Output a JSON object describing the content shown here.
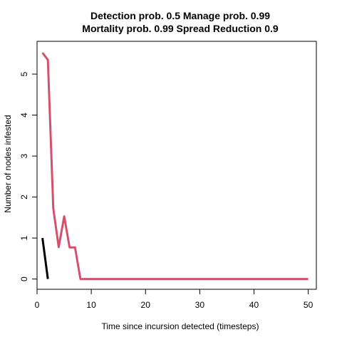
{
  "chart_data": {
    "type": "line",
    "title_line1": "Detection prob. 0.5 Manage prob. 0.99",
    "title_line2": "Mortality prob. 0.99 Spread Reduction 0.9",
    "xlabel": "Time since incursion detected (timesteps)",
    "ylabel": "Number of nodes infested",
    "xlim": [
      0,
      51.5
    ],
    "ylim": [
      -0.25,
      5.8
    ],
    "xticks": [
      0,
      10,
      20,
      30,
      40,
      50
    ],
    "yticks": [
      0,
      1,
      2,
      3,
      4,
      5
    ],
    "grid": false,
    "series": [
      {
        "color": "#000000",
        "x": [
          1,
          2
        ],
        "y": [
          1.0,
          0.0
        ]
      },
      {
        "color": "#d6506e",
        "x": [
          1,
          2,
          3,
          4,
          5,
          6,
          7,
          8,
          9,
          10,
          20,
          30,
          40,
          50
        ],
        "y": [
          5.52,
          5.35,
          1.72,
          0.78,
          1.53,
          0.77,
          0.77,
          0.0,
          0.0,
          0.0,
          0.0,
          0.0,
          0.0,
          0.0
        ]
      }
    ]
  }
}
